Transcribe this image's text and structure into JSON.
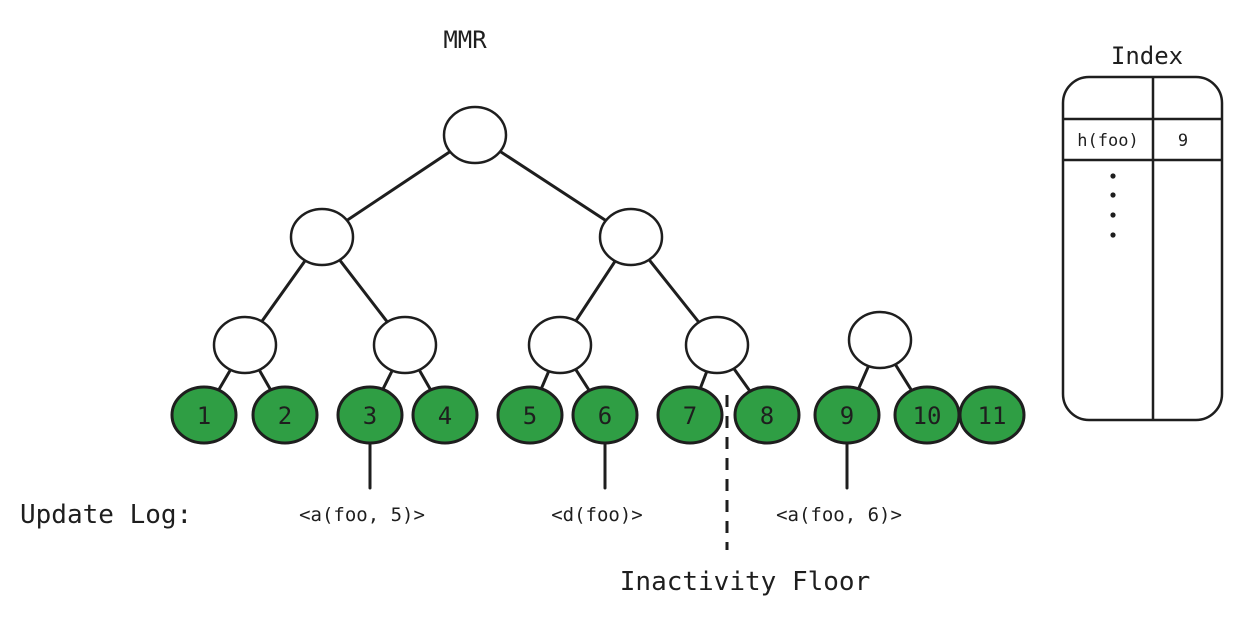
{
  "title": "MMR",
  "leaves": [
    "1",
    "2",
    "3",
    "4",
    "5",
    "6",
    "7",
    "8",
    "9",
    "10",
    "11"
  ],
  "leaf_color": "#2f9e44",
  "update_log": {
    "label": "Update Log:",
    "entries": [
      {
        "leaf": "3",
        "text": "<a(foo, 5)>"
      },
      {
        "leaf": "6",
        "text": "<d(foo)>"
      },
      {
        "leaf": "9",
        "text": "<a(foo, 6)>"
      }
    ]
  },
  "inactivity_floor": {
    "label": "Inactivity Floor",
    "between_leaves": [
      "7",
      "8"
    ]
  },
  "index": {
    "title": "Index",
    "rows": [
      {
        "key": "h(foo)",
        "value": "9"
      }
    ],
    "ellipsis": "⋮"
  }
}
